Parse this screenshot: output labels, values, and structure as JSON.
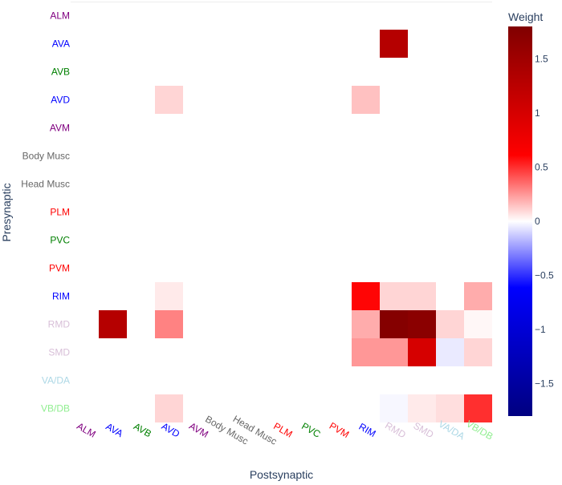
{
  "chart_data": {
    "type": "heatmap",
    "xlabel": "Postsynaptic",
    "ylabel": "Presynaptic",
    "colorbar_title": "Weight",
    "zlim": [
      -1.8,
      1.8
    ],
    "colorbar_ticks": [
      {
        "value": 1.5,
        "label": "1.5"
      },
      {
        "value": 1,
        "label": "1"
      },
      {
        "value": 0.5,
        "label": "0.5"
      },
      {
        "value": 0,
        "label": "0"
      },
      {
        "value": -0.5,
        "label": "−0.5"
      },
      {
        "value": -1,
        "label": "−1"
      },
      {
        "value": -1.5,
        "label": "−1.5"
      }
    ],
    "labels": [
      {
        "name": "ALM",
        "color": "#800080"
      },
      {
        "name": "AVA",
        "color": "#0000ff"
      },
      {
        "name": "AVB",
        "color": "#008000"
      },
      {
        "name": "AVD",
        "color": "#0000ff"
      },
      {
        "name": "AVM",
        "color": "#800080"
      },
      {
        "name": "Body Musc",
        "color": "#666666"
      },
      {
        "name": "Head Musc",
        "color": "#666666"
      },
      {
        "name": "PLM",
        "color": "#ff0000"
      },
      {
        "name": "PVC",
        "color": "#008000"
      },
      {
        "name": "PVM",
        "color": "#ff0000"
      },
      {
        "name": "RIM",
        "color": "#0000ff"
      },
      {
        "name": "RMD",
        "color": "#d8bfd8"
      },
      {
        "name": "SMD",
        "color": "#d8bfd8"
      },
      {
        "name": "VA/DA",
        "color": "#add8e6"
      },
      {
        "name": "VB/DB",
        "color": "#90ee90"
      }
    ],
    "cells": [
      {
        "pre": "AVA",
        "post": "RMD",
        "value": 1.3
      },
      {
        "pre": "AVD",
        "post": "AVD",
        "value": 0.1
      },
      {
        "pre": "AVD",
        "post": "RIM",
        "value": 0.15
      },
      {
        "pre": "RIM",
        "post": "AVD",
        "value": 0.05
      },
      {
        "pre": "RIM",
        "post": "RIM",
        "value": 0.6
      },
      {
        "pre": "RIM",
        "post": "RMD",
        "value": 0.1
      },
      {
        "pre": "RIM",
        "post": "SMD",
        "value": 0.1
      },
      {
        "pre": "RIM",
        "post": "VB/DB",
        "value": 0.2
      },
      {
        "pre": "RMD",
        "post": "AVA",
        "value": 1.3
      },
      {
        "pre": "RMD",
        "post": "AVD",
        "value": 0.3
      },
      {
        "pre": "RMD",
        "post": "RIM",
        "value": 0.2
      },
      {
        "pre": "RMD",
        "post": "RMD",
        "value": 1.75
      },
      {
        "pre": "RMD",
        "post": "SMD",
        "value": 1.7
      },
      {
        "pre": "RMD",
        "post": "VA/DA",
        "value": 0.1
      },
      {
        "pre": "RMD",
        "post": "VB/DB",
        "value": 0.02
      },
      {
        "pre": "SMD",
        "post": "RIM",
        "value": 0.25
      },
      {
        "pre": "SMD",
        "post": "RMD",
        "value": 0.25
      },
      {
        "pre": "SMD",
        "post": "SMD",
        "value": 1.0
      },
      {
        "pre": "SMD",
        "post": "VA/DA",
        "value": -0.05
      },
      {
        "pre": "SMD",
        "post": "VB/DB",
        "value": 0.1
      },
      {
        "pre": "VB/DB",
        "post": "AVD",
        "value": 0.1
      },
      {
        "pre": "VB/DB",
        "post": "RMD",
        "value": -0.02
      },
      {
        "pre": "VB/DB",
        "post": "SMD",
        "value": 0.05
      },
      {
        "pre": "VB/DB",
        "post": "VA/DA",
        "value": 0.08
      },
      {
        "pre": "VB/DB",
        "post": "VB/DB",
        "value": 0.5
      }
    ]
  }
}
